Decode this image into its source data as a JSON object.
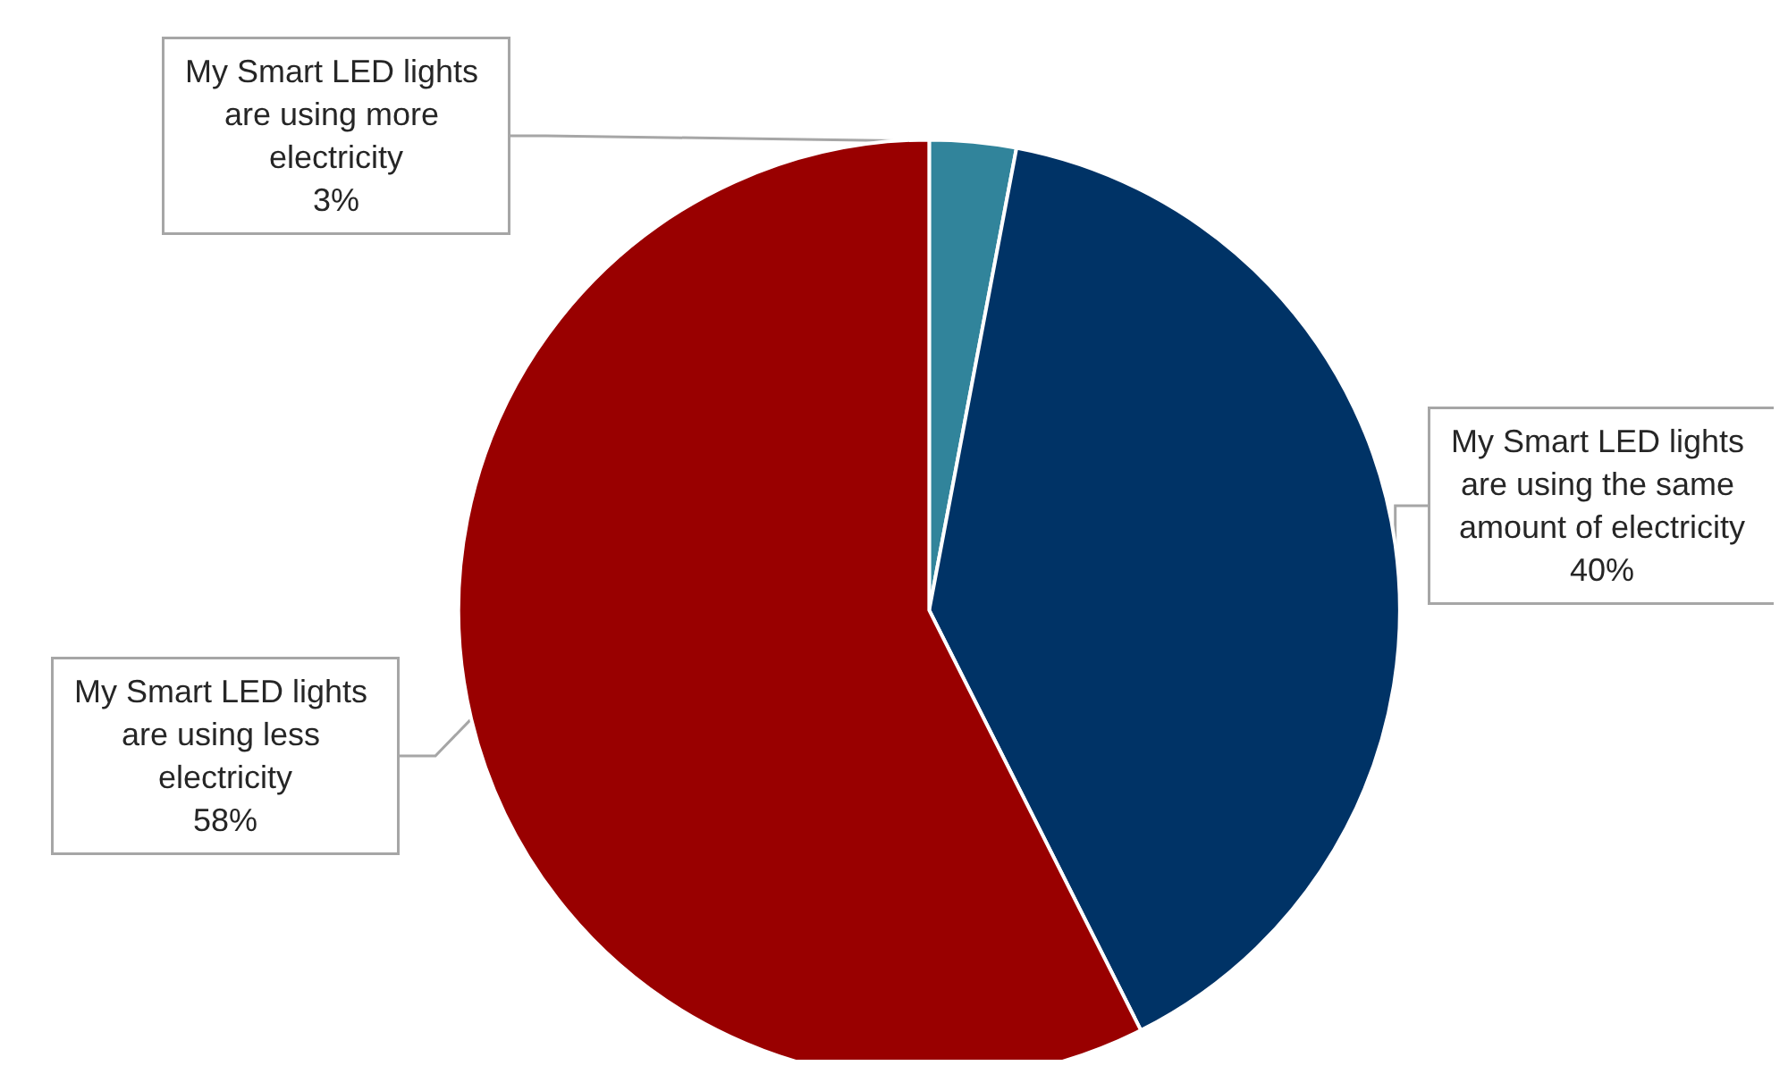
{
  "chart_data": {
    "type": "pie",
    "categories": [
      "My Smart LED lights are using more electricity",
      "My Smart LED lights are using the same amount of electricity",
      "My Smart LED lights are using less electricity"
    ],
    "values": [
      3,
      40,
      58
    ],
    "value_labels": [
      "3%",
      "40%",
      "58%"
    ],
    "colors": [
      "#31849b",
      "#003366",
      "#990000"
    ],
    "legend": false
  }
}
